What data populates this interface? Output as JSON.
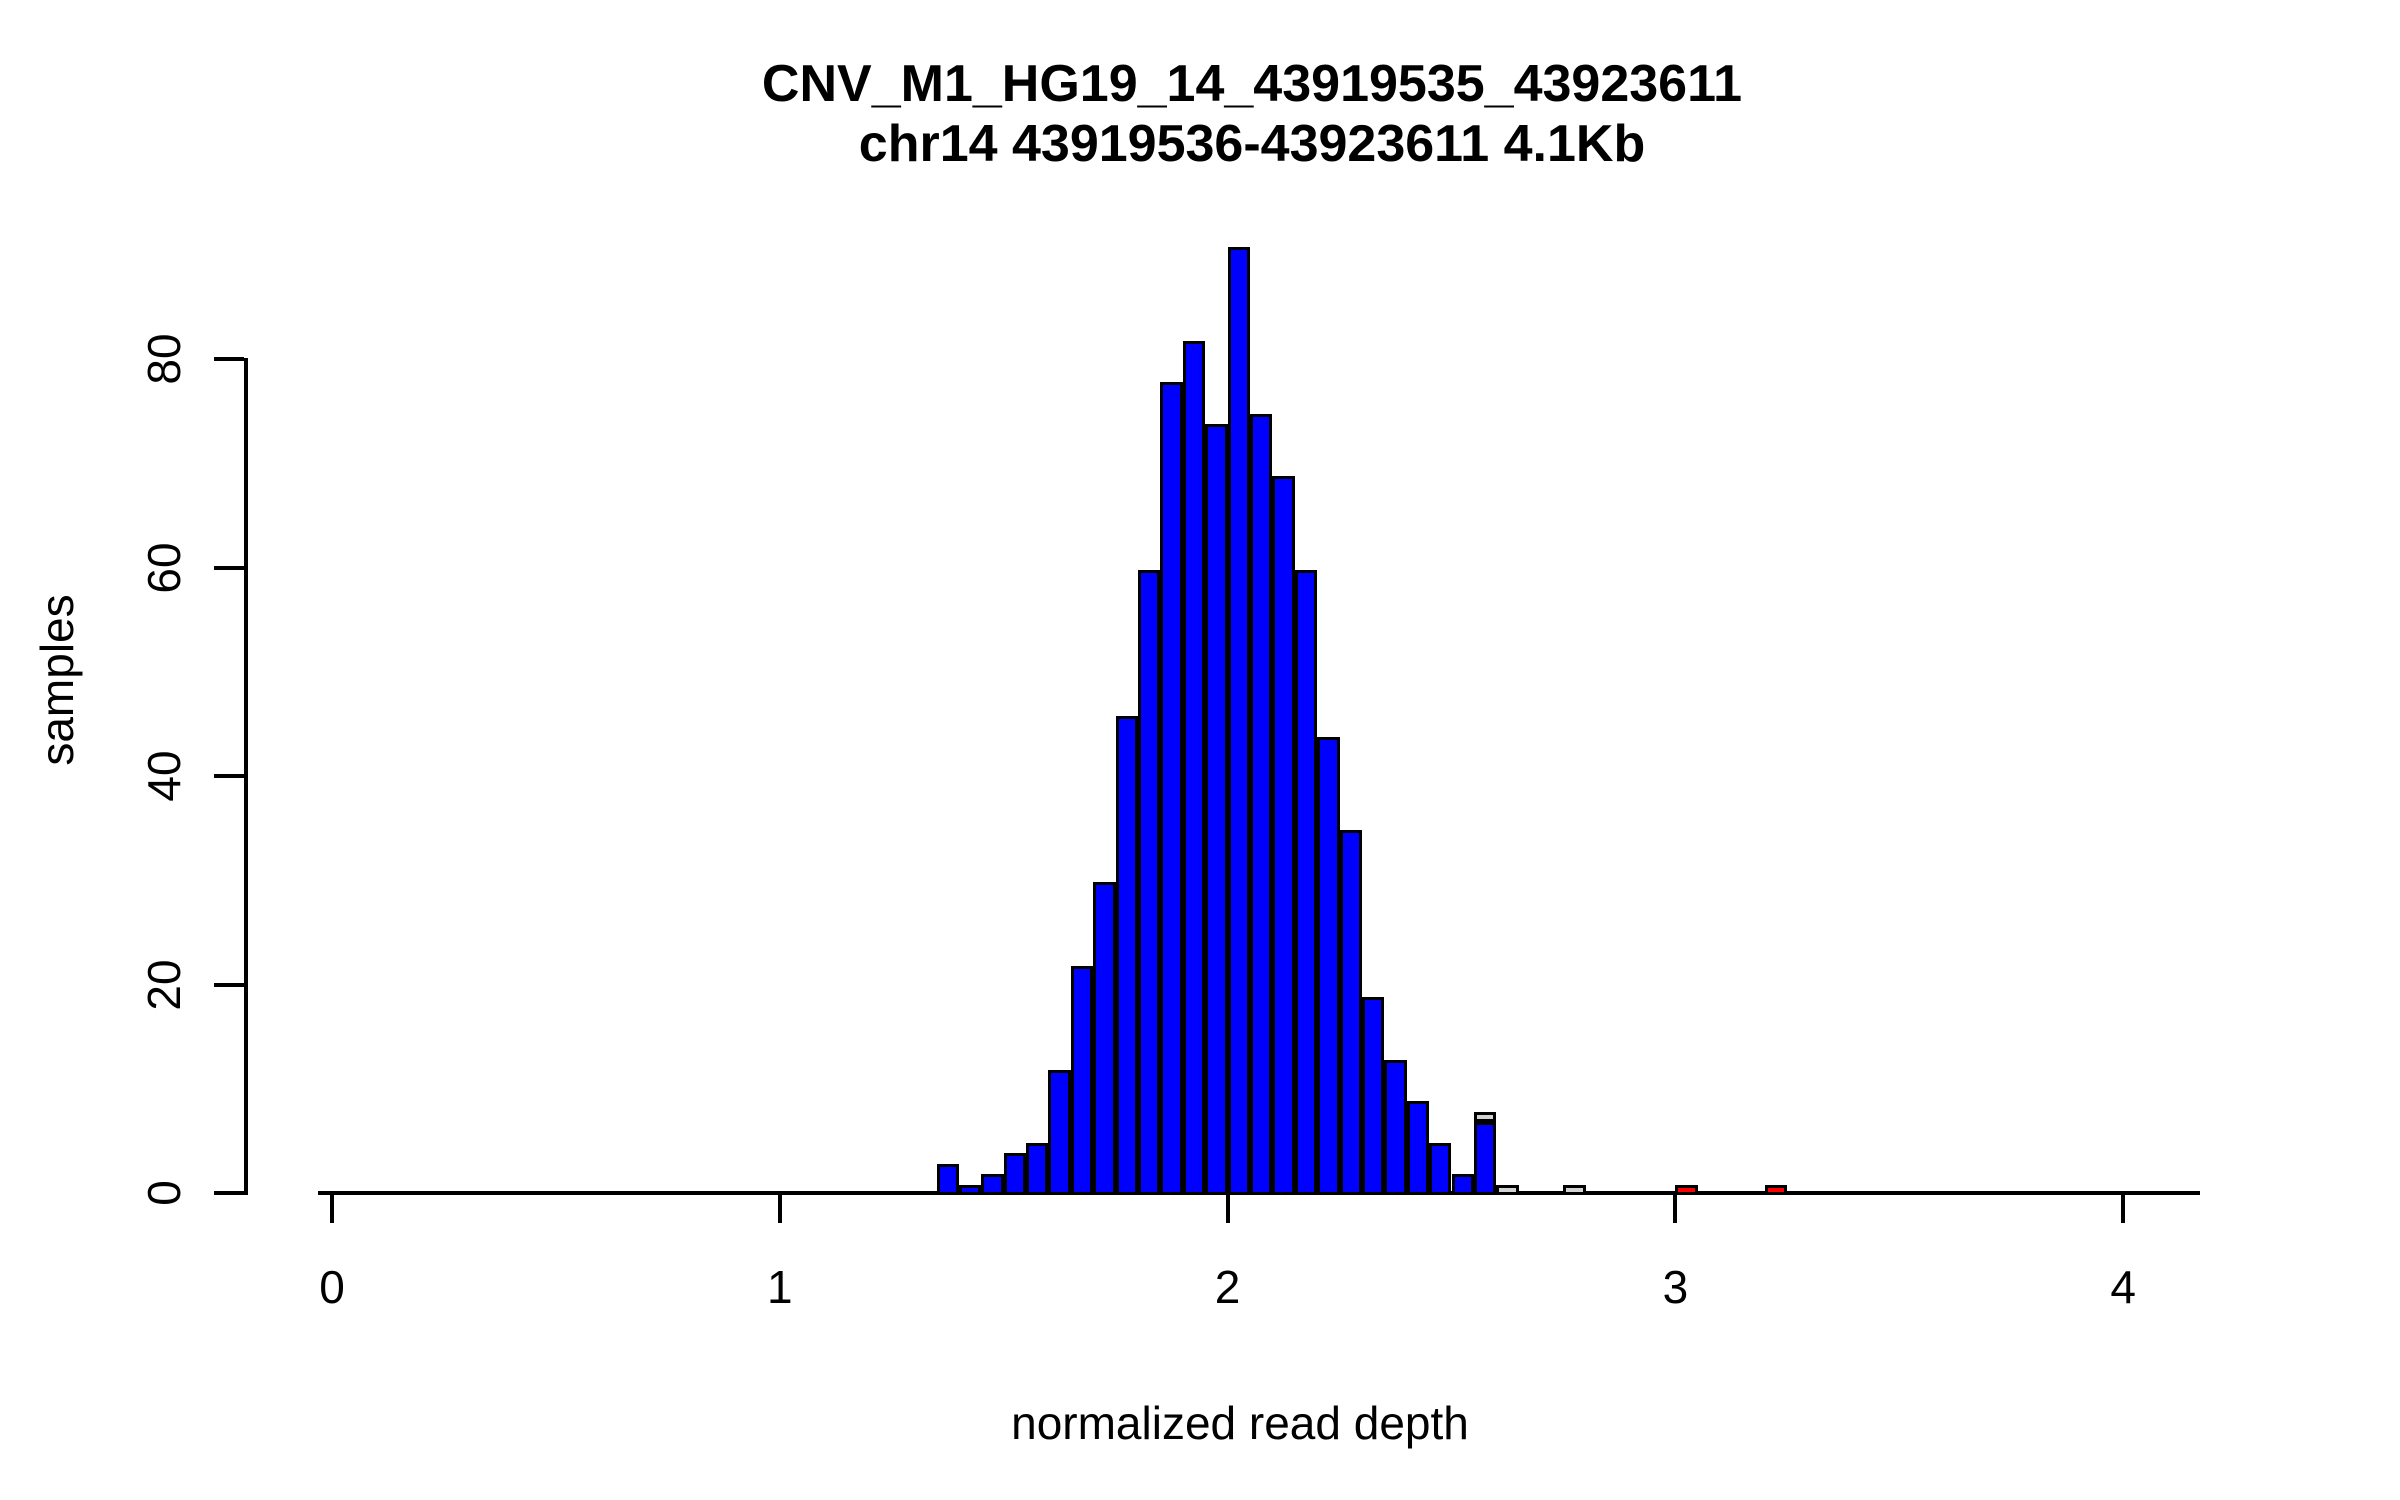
{
  "page": {
    "background": "#FFFFFF"
  },
  "title": {
    "line1": "CNV_M1_HG19_14_43919535_43923611",
    "line2": "chr14 43919536-43923611 4.1Kb"
  },
  "chart_data": {
    "type": "bar",
    "subtype": "histogram",
    "title": "CNV_M1_HG19_14_43919535_43923611",
    "subtitle": "chr14 43919536-43923611 4.1Kb",
    "xlabel": "normalized read depth",
    "ylabel": "samples",
    "xlim": [
      0,
      4.2
    ],
    "ylim": [
      0,
      92
    ],
    "grid": false,
    "legend": false,
    "bin_width": 0.05,
    "x_ticks": {
      "values": [
        0,
        1,
        2,
        3,
        4
      ],
      "labels": [
        "0",
        "1",
        "2",
        "3",
        "4"
      ]
    },
    "y_ticks": {
      "values": [
        0,
        20,
        40,
        60,
        80
      ],
      "labels": [
        "0",
        "20",
        "40",
        "60",
        "80"
      ]
    },
    "colors": {
      "main_blue": "#0000FF",
      "gray": "#D3D3D3",
      "red": "#FF0000",
      "bar_border": "#000000",
      "axis": "#000000"
    },
    "bars": [
      {
        "x": 1.35,
        "segments": [
          {
            "value": 3,
            "color": "#0000FF"
          }
        ]
      },
      {
        "x": 1.4,
        "segments": [
          {
            "value": 1,
            "color": "#0000FF"
          }
        ]
      },
      {
        "x": 1.45,
        "segments": [
          {
            "value": 2,
            "color": "#0000FF"
          }
        ]
      },
      {
        "x": 1.5,
        "segments": [
          {
            "value": 4,
            "color": "#0000FF"
          }
        ]
      },
      {
        "x": 1.55,
        "segments": [
          {
            "value": 5,
            "color": "#0000FF"
          }
        ]
      },
      {
        "x": 1.6,
        "segments": [
          {
            "value": 12,
            "color": "#0000FF"
          }
        ]
      },
      {
        "x": 1.65,
        "segments": [
          {
            "value": 22,
            "color": "#0000FF"
          }
        ]
      },
      {
        "x": 1.7,
        "segments": [
          {
            "value": 30,
            "color": "#0000FF"
          }
        ]
      },
      {
        "x": 1.75,
        "segments": [
          {
            "value": 46,
            "color": "#0000FF"
          }
        ]
      },
      {
        "x": 1.8,
        "segments": [
          {
            "value": 60,
            "color": "#0000FF"
          }
        ]
      },
      {
        "x": 1.85,
        "segments": [
          {
            "value": 78,
            "color": "#0000FF"
          }
        ]
      },
      {
        "x": 1.9,
        "segments": [
          {
            "value": 82,
            "color": "#0000FF"
          }
        ]
      },
      {
        "x": 1.95,
        "segments": [
          {
            "value": 74,
            "color": "#0000FF"
          }
        ]
      },
      {
        "x": 2.0,
        "segments": [
          {
            "value": 91,
            "color": "#0000FF"
          }
        ]
      },
      {
        "x": 2.05,
        "segments": [
          {
            "value": 75,
            "color": "#0000FF"
          }
        ]
      },
      {
        "x": 2.1,
        "segments": [
          {
            "value": 69,
            "color": "#0000FF"
          }
        ]
      },
      {
        "x": 2.15,
        "segments": [
          {
            "value": 60,
            "color": "#0000FF"
          }
        ]
      },
      {
        "x": 2.2,
        "segments": [
          {
            "value": 44,
            "color": "#0000FF"
          }
        ]
      },
      {
        "x": 2.25,
        "segments": [
          {
            "value": 35,
            "color": "#0000FF"
          }
        ]
      },
      {
        "x": 2.3,
        "segments": [
          {
            "value": 19,
            "color": "#0000FF"
          }
        ]
      },
      {
        "x": 2.35,
        "segments": [
          {
            "value": 13,
            "color": "#0000FF"
          }
        ]
      },
      {
        "x": 2.4,
        "segments": [
          {
            "value": 9,
            "color": "#0000FF"
          }
        ]
      },
      {
        "x": 2.45,
        "segments": [
          {
            "value": 5,
            "color": "#0000FF"
          }
        ]
      },
      {
        "x": 2.5,
        "segments": [
          {
            "value": 2,
            "color": "#0000FF"
          }
        ]
      },
      {
        "x": 2.55,
        "segments": [
          {
            "value": 7,
            "color": "#0000FF"
          },
          {
            "value": 1,
            "color": "#D3D3D3"
          }
        ]
      },
      {
        "x": 2.6,
        "segments": [
          {
            "value": 1,
            "color": "#D3D3D3"
          }
        ]
      },
      {
        "x": 2.75,
        "segments": [
          {
            "value": 1,
            "color": "#D3D3D3"
          }
        ]
      },
      {
        "x": 3.0,
        "segments": [
          {
            "value": 1,
            "color": "#FF0000"
          }
        ]
      },
      {
        "x": 3.2,
        "segments": [
          {
            "value": 1,
            "color": "#FF0000"
          }
        ]
      }
    ]
  }
}
